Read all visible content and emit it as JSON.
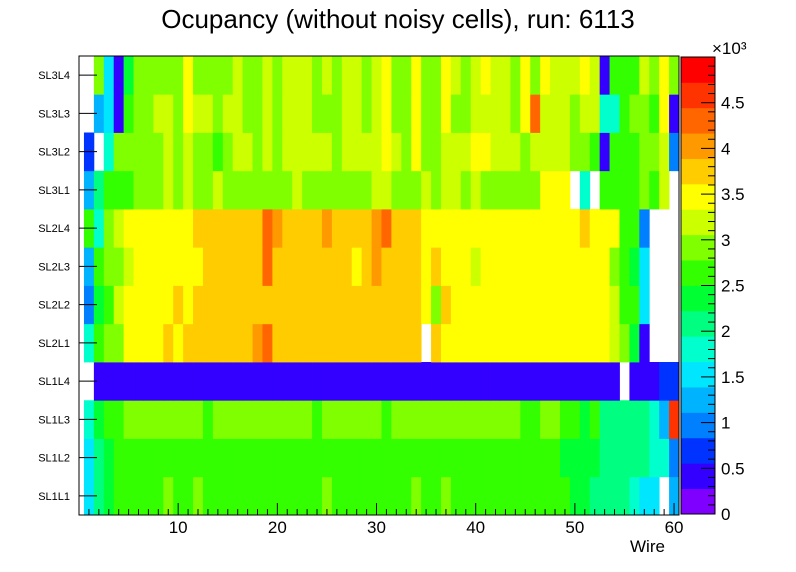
{
  "chart_data": {
    "type": "heatmap",
    "title": "Ocupancy (without noisy cells), run: 6113",
    "xlabel": "Wire",
    "ylabel": "",
    "xlim": [
      0,
      60.5
    ],
    "x_ticks": [
      10,
      20,
      30,
      40,
      50,
      60
    ],
    "y_categories": [
      "SL1L1",
      "SL1L2",
      "SL1L3",
      "SL1L4",
      "SL2L1",
      "SL2L2",
      "SL2L3",
      "SL2L4",
      "SL3L1",
      "SL3L2",
      "SL3L3",
      "SL3L4"
    ],
    "color_scale": {
      "min": 0,
      "max": 5000,
      "multiplier_label": "×10³",
      "tick_values": [
        0,
        500,
        1000,
        1500,
        2000,
        2500,
        3000,
        3500,
        4000,
        4500
      ],
      "tick_labels": [
        "0",
        "0.5",
        "1",
        "1.5",
        "2",
        "2.5",
        "3",
        "3.5",
        "4",
        "4.5"
      ]
    },
    "wires_per_layer": 60,
    "rows": {
      "SL3L4": [
        null,
        2900,
        1500,
        300,
        2400,
        3000,
        3000,
        3000,
        3000,
        3000,
        3400,
        3000,
        2900,
        3000,
        3000,
        3200,
        3000,
        3000,
        3200,
        3000,
        3200,
        3300,
        3300,
        3000,
        3100,
        3000,
        3200,
        3300,
        3000,
        3200,
        3400,
        3000,
        3000,
        3600,
        3000,
        2900,
        3400,
        3100,
        3000,
        3200,
        3600,
        3300,
        3300,
        3000,
        3400,
        2900,
        3400,
        3200,
        3200,
        3200,
        3400,
        3100,
        300,
        2600,
        2600,
        2700,
        3200,
        3000,
        3500,
        3000
      ],
      "SL3L3": [
        null,
        1200,
        1500,
        300,
        2600,
        3000,
        3000,
        3200,
        3200,
        3000,
        3400,
        3100,
        3100,
        3000,
        3200,
        3200,
        3000,
        2900,
        3200,
        3000,
        3200,
        3300,
        3200,
        3000,
        3000,
        2900,
        3200,
        3300,
        3000,
        3300,
        3400,
        3000,
        3000,
        3400,
        2900,
        2900,
        3400,
        3000,
        3000,
        3300,
        3300,
        3300,
        3300,
        3000,
        3500,
        4400,
        3300,
        3300,
        3200,
        3000,
        3300,
        3100,
        1800,
        1800,
        2600,
        2800,
        3000,
        2700,
        3400,
        300
      ],
      "SL3L2": [
        600,
        null,
        1900,
        2800,
        2800,
        2800,
        3000,
        3000,
        3200,
        3000,
        3100,
        3000,
        3000,
        2700,
        3000,
        3300,
        3200,
        3000,
        3200,
        3000,
        3100,
        3200,
        3300,
        3200,
        3100,
        3000,
        3200,
        3200,
        3100,
        3300,
        3400,
        3100,
        3000,
        3400,
        3000,
        3000,
        3100,
        3100,
        3300,
        3400,
        3400,
        3300,
        3200,
        3100,
        3000,
        3200,
        3200,
        3200,
        3100,
        2800,
        3000,
        2600,
        400,
        2500,
        2700,
        2600,
        3000,
        2800,
        3200,
        1000
      ],
      "SL3L1": [
        1300,
        2000,
        2700,
        2700,
        2700,
        3000,
        2900,
        3000,
        3100,
        3000,
        3300,
        3000,
        3000,
        3100,
        3000,
        3000,
        3000,
        3000,
        2900,
        3000,
        3000,
        3300,
        3000,
        3000,
        3000,
        3000,
        2900,
        3000,
        3000,
        3100,
        3300,
        3000,
        3000,
        3000,
        3100,
        3000,
        3200,
        3200,
        3000,
        3100,
        3000,
        3000,
        2900,
        3000,
        3000,
        3000,
        3400,
        3600,
        3600,
        null,
        1800,
        null,
        2500,
        2500,
        2600,
        2700,
        3000,
        2700,
        3100,
        null
      ],
      "SL2L4": [
        2500,
        1900,
        3000,
        3100,
        3500,
        3500,
        3600,
        3600,
        3600,
        3600,
        3600,
        3700,
        3700,
        3700,
        3800,
        3800,
        3700,
        3800,
        4300,
        3900,
        3800,
        3800,
        3800,
        3800,
        3900,
        3800,
        3800,
        3800,
        3800,
        3900,
        4200,
        3800,
        3700,
        3800,
        3600,
        3600,
        3600,
        3600,
        3600,
        3400,
        3600,
        3600,
        3600,
        3600,
        3500,
        3500,
        3600,
        3500,
        3400,
        3500,
        3700,
        3500,
        3400,
        3500,
        2700,
        2600,
        1100,
        null,
        null,
        null
      ],
      "SL2L3": [
        1300,
        2700,
        2800,
        3000,
        3300,
        3400,
        3500,
        3600,
        3500,
        3600,
        3600,
        3600,
        3700,
        3800,
        3800,
        3700,
        3800,
        3800,
        4200,
        3800,
        3700,
        3800,
        3800,
        3800,
        3800,
        3700,
        3800,
        3600,
        3700,
        3900,
        3800,
        3800,
        3800,
        3700,
        3600,
        3700,
        3500,
        3600,
        3600,
        3300,
        3500,
        3600,
        3500,
        3600,
        3600,
        3500,
        3500,
        3500,
        3500,
        3400,
        3500,
        3500,
        3500,
        3000,
        2700,
        2300,
        1500,
        null,
        null,
        null
      ],
      "SL2L2": [
        900,
        2400,
        2700,
        3100,
        3400,
        3500,
        3500,
        3600,
        3600,
        3700,
        3600,
        3700,
        3800,
        3700,
        3800,
        3700,
        3800,
        3800,
        3800,
        3800,
        3800,
        3800,
        3800,
        3800,
        3800,
        3800,
        3800,
        3800,
        3800,
        3800,
        3800,
        3800,
        3800,
        3700,
        3500,
        3000,
        3800,
        3600,
        3600,
        3500,
        3500,
        3600,
        3500,
        3600,
        3600,
        3500,
        3600,
        3500,
        3500,
        3500,
        3600,
        3500,
        3500,
        3200,
        2700,
        2500,
        1600,
        null,
        null,
        null
      ],
      "SL2L1": [
        1900,
        2500,
        2800,
        3000,
        3400,
        3600,
        3600,
        3600,
        3700,
        3600,
        3700,
        3700,
        3700,
        3700,
        3800,
        3800,
        3800,
        3900,
        4200,
        3800,
        3700,
        3800,
        3800,
        3700,
        3800,
        3800,
        3800,
        3800,
        3800,
        3800,
        3800,
        3800,
        3700,
        3700,
        null,
        3700,
        3600,
        3500,
        3400,
        3500,
        3600,
        3400,
        3500,
        3400,
        3600,
        3500,
        3600,
        3600,
        3500,
        3400,
        3500,
        3500,
        3500,
        3200,
        2800,
        2300,
        500,
        null,
        null,
        null
      ],
      "SL1L4": [
        null,
        450,
        450,
        450,
        450,
        450,
        450,
        450,
        450,
        500,
        350,
        450,
        350,
        350,
        350,
        350,
        350,
        350,
        350,
        450,
        300,
        350,
        400,
        400,
        400,
        400,
        400,
        400,
        400,
        400,
        400,
        400,
        400,
        400,
        300,
        400,
        400,
        400,
        400,
        400,
        400,
        400,
        400,
        400,
        400,
        400,
        400,
        400,
        400,
        400,
        400,
        400,
        400,
        400,
        null,
        350,
        350,
        350,
        700,
        700
      ],
      "SL1L3": [
        1800,
        2300,
        2600,
        2700,
        2800,
        2800,
        2800,
        2900,
        2900,
        2900,
        2800,
        2800,
        2700,
        2800,
        2900,
        2800,
        2900,
        2800,
        2800,
        2800,
        2900,
        2800,
        2800,
        2700,
        2800,
        2800,
        2800,
        2900,
        2900,
        2800,
        2700,
        2800,
        2800,
        2900,
        2800,
        2800,
        2800,
        2900,
        2800,
        2800,
        2800,
        2800,
        2800,
        2900,
        2700,
        2700,
        2900,
        2800,
        2600,
        2500,
        2400,
        2500,
        2200,
        2100,
        2100,
        2000,
        2000,
        1900,
        1300,
        4600
      ],
      "SL1L2": [
        1400,
        2000,
        2400,
        2500,
        2500,
        2600,
        2700,
        2700,
        2700,
        2700,
        2700,
        2700,
        2600,
        2600,
        2700,
        2600,
        2700,
        2600,
        2700,
        2600,
        2700,
        2700,
        2600,
        2600,
        2700,
        2600,
        2700,
        2600,
        2600,
        2600,
        2600,
        2600,
        2700,
        2600,
        2600,
        2600,
        2500,
        2700,
        2600,
        2600,
        2600,
        2700,
        2600,
        2600,
        2600,
        2600,
        2500,
        2500,
        2400,
        2300,
        2300,
        2300,
        2200,
        2200,
        2100,
        2000,
        2000,
        1900,
        1700,
        1000
      ],
      "SL1L1": [
        1600,
        2000,
        2300,
        2500,
        2600,
        2600,
        2700,
        2700,
        2800,
        2700,
        2700,
        2800,
        2700,
        2600,
        2600,
        2600,
        2700,
        2600,
        2700,
        2600,
        2600,
        2700,
        2600,
        2700,
        2800,
        2600,
        2600,
        2600,
        2600,
        2600,
        2700,
        2600,
        2700,
        2800,
        2600,
        2600,
        2800,
        2600,
        2600,
        2600,
        2600,
        2700,
        2600,
        2600,
        2700,
        2500,
        2600,
        2500,
        2600,
        2300,
        2300,
        2200,
        2200,
        2000,
        2000,
        1800,
        1600,
        1600,
        null,
        1200
      ]
    }
  }
}
